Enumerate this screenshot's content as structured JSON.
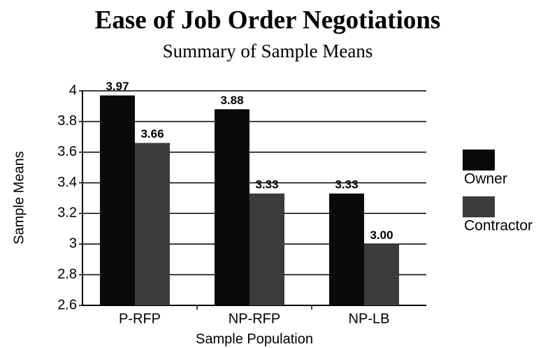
{
  "chart_data": {
    "type": "bar",
    "title": "Ease of Job Order Negotiations",
    "subtitle": "Summary of Sample Means",
    "x_label": "Sample Population",
    "y_label": "Sample Means",
    "categories": [
      "P-RFP",
      "NP-RFP",
      "NP-LB"
    ],
    "series": [
      {
        "name": "Owner",
        "color": "#0a0a0a",
        "values": [
          3.97,
          3.88,
          3.33
        ],
        "value_labels": [
          "3.97",
          "3.88",
          "3.33"
        ]
      },
      {
        "name": "Contractor",
        "color": "#3c3c3c",
        "values": [
          3.66,
          3.33,
          3.0
        ],
        "value_labels": [
          "3.66",
          "3.33",
          "3.00"
        ]
      }
    ],
    "ylim": [
      2.6,
      4
    ],
    "yticks": [
      2.6,
      2.8,
      3,
      3.2,
      3.4,
      3.6,
      3.8,
      4
    ],
    "grid": true,
    "legend": "right"
  }
}
